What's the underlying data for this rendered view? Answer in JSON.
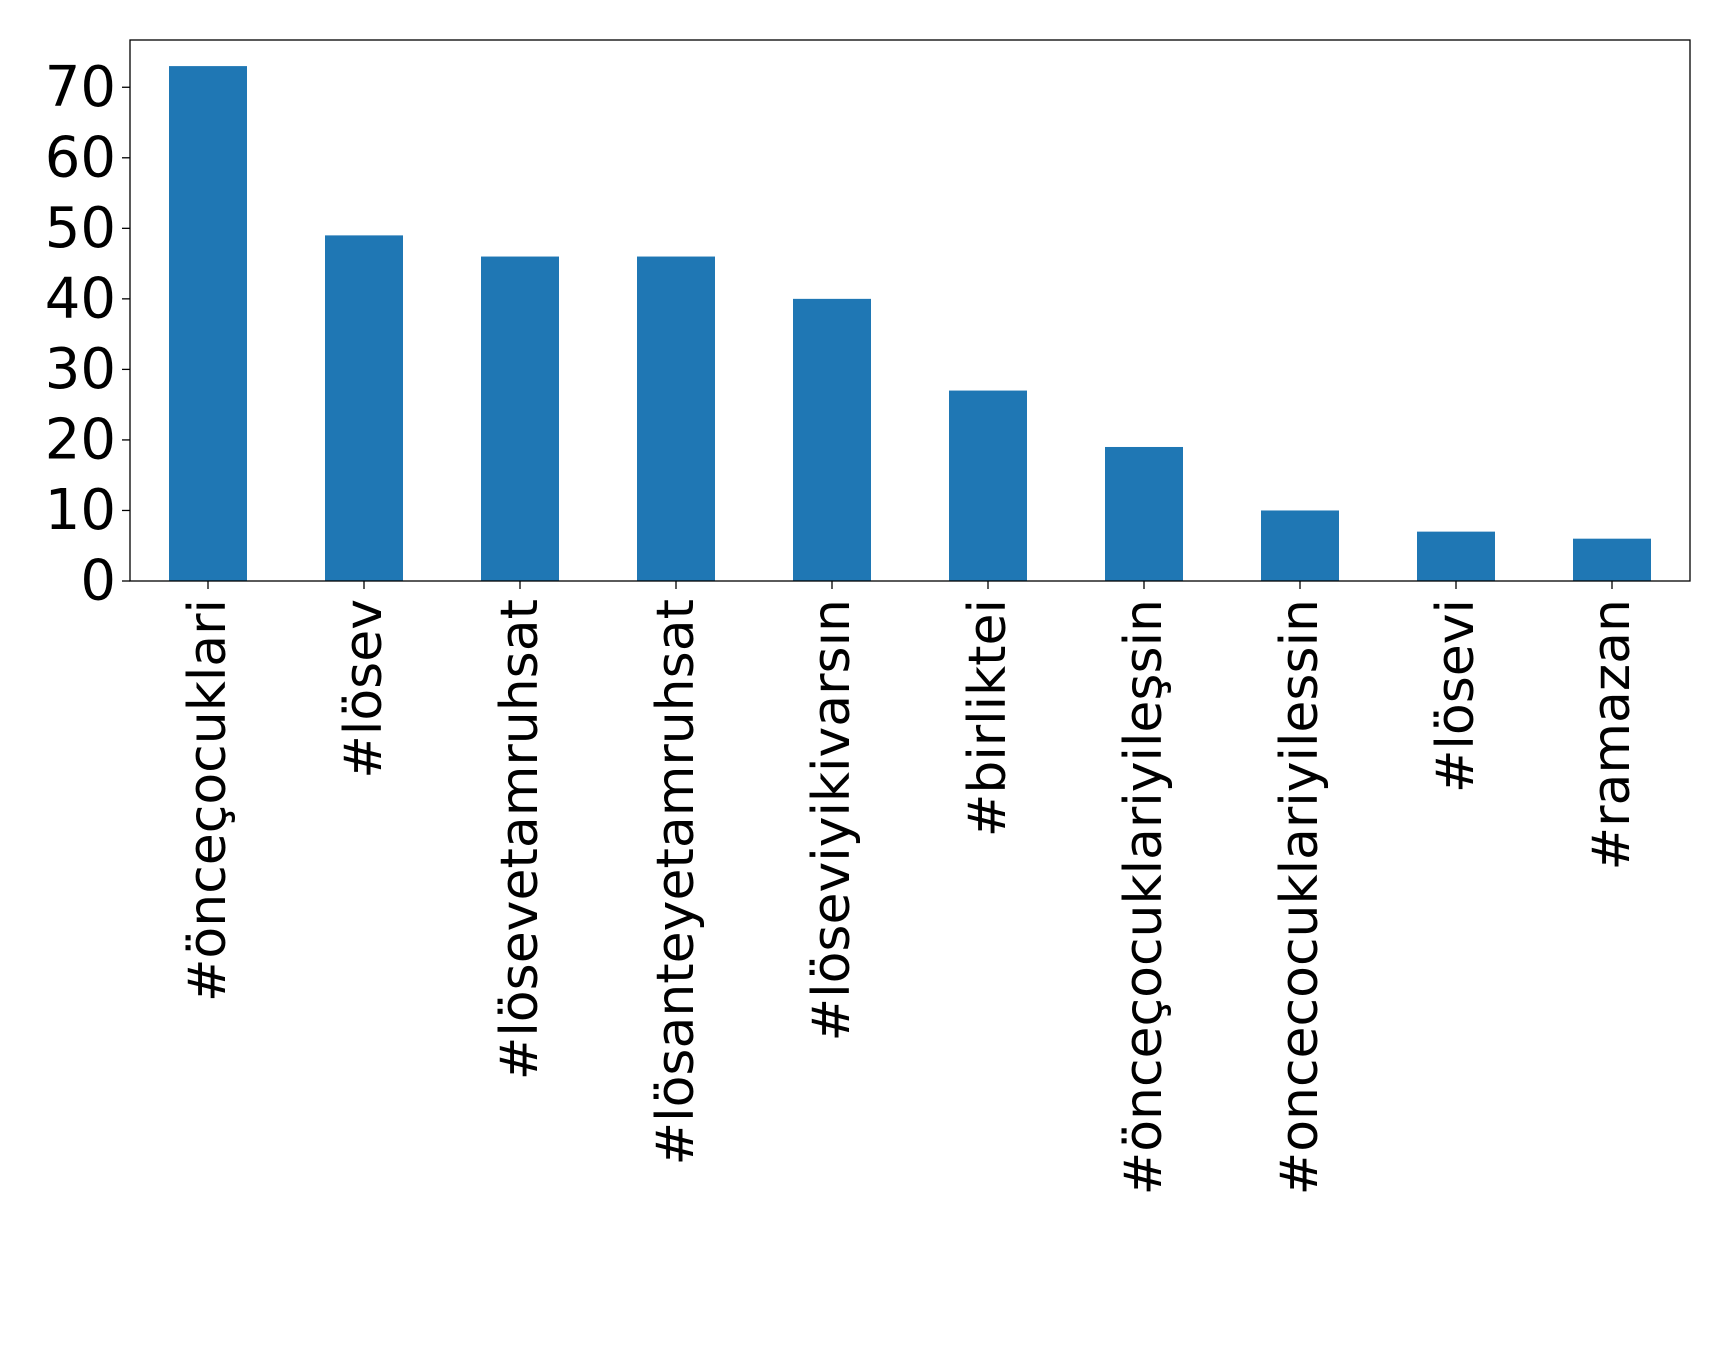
{
  "chart_data": {
    "type": "bar",
    "title": "",
    "xlabel": "",
    "ylabel": "",
    "categories": [
      "#önceçocuklari",
      "#lösev",
      "#lösevetamruhsat",
      "#lösanteyetamruhsat",
      "#löseviyikivarsın",
      "#birliktei",
      "#önceçocuklariyileşsin",
      "#oncecocuklariyilessin",
      "#lösevi",
      "#ramazan"
    ],
    "values": [
      73,
      49,
      46,
      46,
      40,
      27,
      19,
      10,
      7,
      6
    ],
    "ylim": [
      0,
      76.7
    ],
    "yticks": [
      0,
      10,
      20,
      30,
      40,
      50,
      60,
      70
    ],
    "bar_color": "#1f77b4",
    "grid": false,
    "legend": "none"
  }
}
